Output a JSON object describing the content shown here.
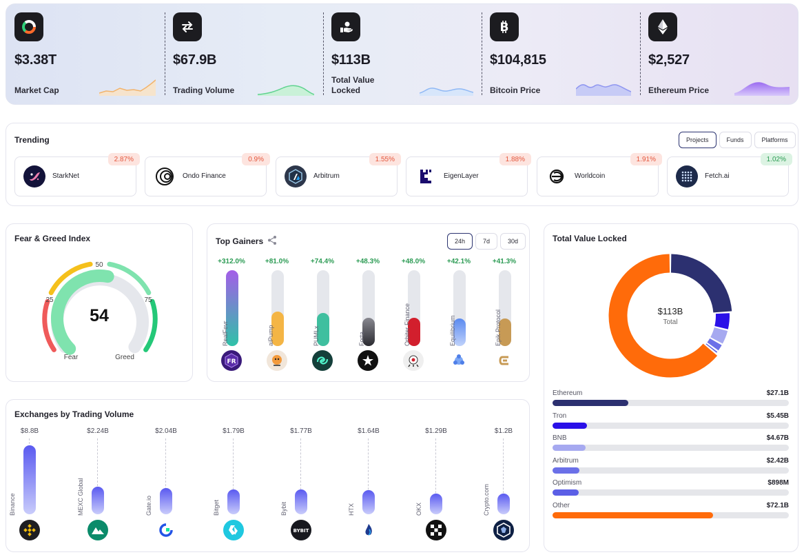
{
  "stats": [
    {
      "value": "$3.38T",
      "label": "Market Cap",
      "icon": "donut-logo-icon",
      "spark_color": "#f2b36b"
    },
    {
      "value": "$67.9B",
      "label": "Trading Volume",
      "icon": "swap-arrows-icon",
      "spark_color": "#5fd38f"
    },
    {
      "value": "$113B",
      "label": "Total Value Locked",
      "icon": "hand-coin-icon",
      "spark_color": "#8fb8f5"
    },
    {
      "value": "$104,815",
      "label": "Bitcoin Price",
      "icon": "bitcoin-icon",
      "spark_color": "#8f96f0"
    },
    {
      "value": "$2,527",
      "label": "Ethereum Price",
      "icon": "ethereum-icon",
      "spark_color": "#a47cf0"
    }
  ],
  "trending": {
    "title": "Trending",
    "tabs": [
      "Projects",
      "Funds",
      "Platforms"
    ],
    "items": [
      {
        "name": "StarkNet",
        "change": "2.87%",
        "direction": "down"
      },
      {
        "name": "Ondo Finance",
        "change": "0.9%",
        "direction": "down"
      },
      {
        "name": "Arbitrum",
        "change": "1.55%",
        "direction": "down"
      },
      {
        "name": "EigenLayer",
        "change": "1.88%",
        "direction": "down"
      },
      {
        "name": "Worldcoin",
        "change": "1.91%",
        "direction": "down"
      },
      {
        "name": "Fetch.ai",
        "change": "1.02%",
        "direction": "up"
      }
    ]
  },
  "fear_greed": {
    "title": "Fear & Greed Index",
    "value": "54",
    "value_number": 54,
    "ticks": [
      "25",
      "50",
      "75"
    ],
    "left_label": "Fear",
    "right_label": "Greed"
  },
  "top_gainers": {
    "title": "Top Gainers",
    "tabs": [
      "24h",
      "7d",
      "30d"
    ],
    "items": [
      {
        "name": "RealFevr",
        "change": "+312.0%",
        "level": 1.0,
        "color": "#a45ee8",
        "color2": "#2fc2a8"
      },
      {
        "name": "aiPump",
        "change": "+81.0%",
        "level": 0.45,
        "color": "#f4b545",
        "color2": "#f4b545"
      },
      {
        "name": "PUMLx",
        "change": "+74.4%",
        "level": 0.44,
        "color": "#3fbf9f",
        "color2": "#3fbf9f"
      },
      {
        "name": "Forta",
        "change": "+48.3%",
        "level": 0.37,
        "color": "#888890",
        "color2": "#2a2a30"
      },
      {
        "name": "Orbiter Finance",
        "change": "+48.0%",
        "level": 0.37,
        "color": "#d21f2d",
        "color2": "#d21f2d"
      },
      {
        "name": "Equilibrium",
        "change": "+42.1%",
        "level": 0.36,
        "color": "#5b8af0",
        "color2": "#c0d2fb"
      },
      {
        "name": "Epik Protocol",
        "change": "+41.3%",
        "level": 0.36,
        "color": "#c79a55",
        "color2": "#c79a55"
      }
    ]
  },
  "tvl": {
    "title": "Total Value Locked",
    "center_value": "$113B",
    "center_label": "Total",
    "chains": [
      {
        "name": "Ethereum",
        "value": "$27.1B",
        "level": 0.32,
        "color": "#2c3070"
      },
      {
        "name": "Tron",
        "value": "$5.45B",
        "level": 0.145,
        "color": "#2a10e8"
      },
      {
        "name": "BNB",
        "value": "$4.67B",
        "level": 0.14,
        "color": "#a6a9f0"
      },
      {
        "name": "Arbitrum",
        "value": "$2.42B",
        "level": 0.115,
        "color": "#6b70e8"
      },
      {
        "name": "Optimism",
        "value": "$898M",
        "level": 0.11,
        "color": "#5b5fe6"
      },
      {
        "name": "Other",
        "value": "$72.1B",
        "level": 0.68,
        "color": "#ff6b0a"
      }
    ]
  },
  "exchanges": {
    "title": "Exchanges by Trading Volume",
    "items": [
      {
        "name": "Binance",
        "value": "$8.8B",
        "level": 1.0
      },
      {
        "name": "MEXC Global",
        "value": "$2.24B",
        "level": 0.4
      },
      {
        "name": "Gate.io",
        "value": "$2.04B",
        "level": 0.38
      },
      {
        "name": "Bitget",
        "value": "$1.79B",
        "level": 0.36
      },
      {
        "name": "Bybit",
        "value": "$1.77B",
        "level": 0.36
      },
      {
        "name": "HTX",
        "value": "$1.64B",
        "level": 0.35
      },
      {
        "name": "OKX",
        "value": "$1.29B",
        "level": 0.3
      },
      {
        "name": "Crypto.com",
        "value": "$1.2B",
        "level": 0.3
      }
    ]
  }
}
